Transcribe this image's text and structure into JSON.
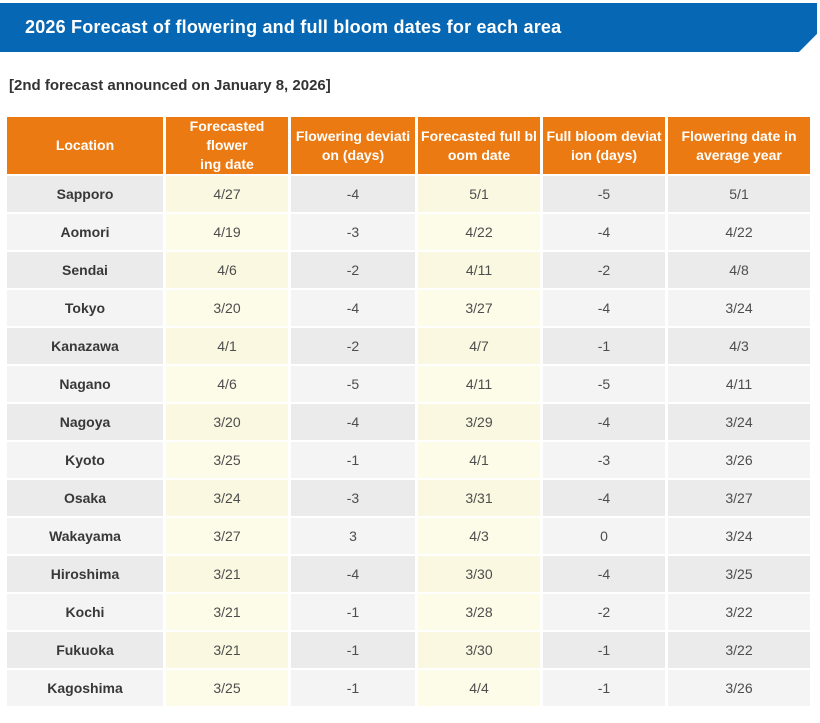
{
  "banner": {
    "title": "2026 Forecast of flowering and full bloom dates for each area",
    "bg_color": "#0668b4"
  },
  "subtitle": "[2nd forecast announced on January 8, 2026]",
  "table": {
    "header_bg_color": "#ec7a12",
    "highlight_color": "#fbf8e1",
    "columns": [
      {
        "key": "location",
        "line1": "Location",
        "line2": ""
      },
      {
        "key": "forecasted-flowering-date",
        "line1": "Forecasted flower",
        "line2": "ing date"
      },
      {
        "key": "flowering-deviation-days",
        "line1": "Flowering deviati",
        "line2": "on (days)"
      },
      {
        "key": "forecasted-full-bloom-date",
        "line1": "Forecasted full bl",
        "line2": "oom date"
      },
      {
        "key": "full-bloom-deviation-days",
        "line1": "Full bloom deviat",
        "line2": "ion (days)"
      },
      {
        "key": "flowering-date-in-average-year",
        "line1": "Flowering date in",
        "line2": "average year"
      }
    ],
    "rows": [
      {
        "cells": [
          "Sapporo",
          "4/27",
          "-4",
          "5/1",
          "-5",
          "5/1"
        ]
      },
      {
        "cells": [
          "Aomori",
          "4/19",
          "-3",
          "4/22",
          "-4",
          "4/22"
        ]
      },
      {
        "cells": [
          "Sendai",
          "4/6",
          "-2",
          "4/11",
          "-2",
          "4/8"
        ]
      },
      {
        "cells": [
          "Tokyo",
          "3/20",
          "-4",
          "3/27",
          "-4",
          "3/24"
        ]
      },
      {
        "cells": [
          "Kanazawa",
          "4/1",
          "-2",
          "4/7",
          "-1",
          "4/3"
        ]
      },
      {
        "cells": [
          "Nagano",
          "4/6",
          "-5",
          "4/11",
          "-5",
          "4/11"
        ]
      },
      {
        "cells": [
          "Nagoya",
          "3/20",
          "-4",
          "3/29",
          "-4",
          "3/24"
        ]
      },
      {
        "cells": [
          "Kyoto",
          "3/25",
          "-1",
          "4/1",
          "-3",
          "3/26"
        ]
      },
      {
        "cells": [
          "Osaka",
          "3/24",
          "-3",
          "3/31",
          "-4",
          "3/27"
        ]
      },
      {
        "cells": [
          "Wakayama",
          "3/27",
          "3",
          "4/3",
          "0",
          "3/24"
        ]
      },
      {
        "cells": [
          "Hiroshima",
          "3/21",
          "-4",
          "3/30",
          "-4",
          "3/25"
        ]
      },
      {
        "cells": [
          "Kochi",
          "3/21",
          "-1",
          "3/28",
          "-2",
          "3/22"
        ]
      },
      {
        "cells": [
          "Fukuoka",
          "3/21",
          "-1",
          "3/30",
          "-1",
          "3/22"
        ]
      },
      {
        "cells": [
          "Kagoshima",
          "3/25",
          "-1",
          "4/4",
          "-1",
          "3/26"
        ]
      }
    ]
  }
}
